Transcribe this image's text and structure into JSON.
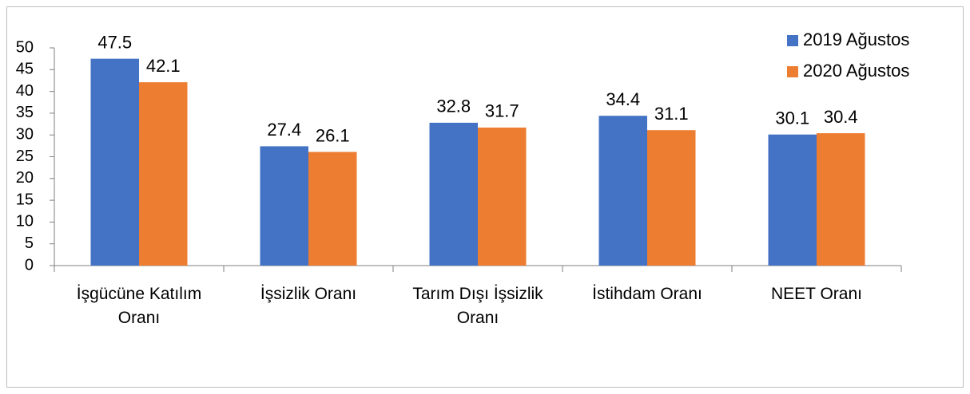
{
  "chart_data": {
    "type": "bar",
    "categories": [
      "İşgücüne Katılım Oranı",
      "İşsizlik Oranı",
      "Tarım Dışı İşsizlik Oranı",
      "İstihdam Oranı",
      "NEET Oranı"
    ],
    "series": [
      {
        "name": "2019 Ağustos",
        "color": "#4472c4",
        "values": [
          47.5,
          27.4,
          32.8,
          34.4,
          30.1
        ]
      },
      {
        "name": "2020 Ağustos",
        "color": "#ed7d31",
        "values": [
          42.1,
          26.1,
          31.7,
          31.1,
          30.4
        ]
      }
    ],
    "ylim": [
      0,
      50
    ],
    "yticks": [
      0,
      5,
      10,
      15,
      20,
      25,
      30,
      35,
      40,
      45,
      50
    ],
    "grid": false,
    "legend": "top-right"
  }
}
